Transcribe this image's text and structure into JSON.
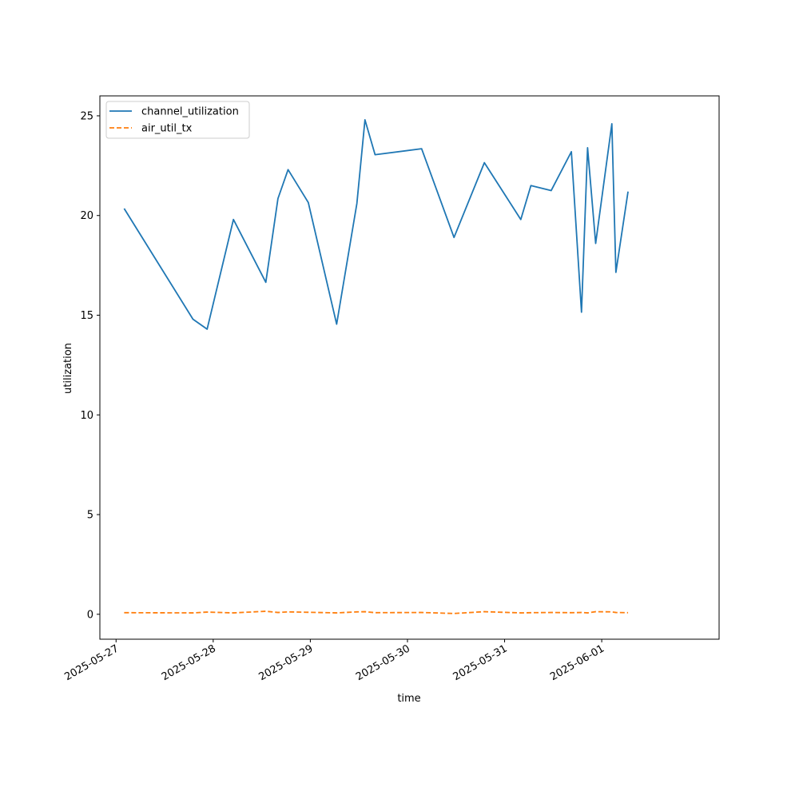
{
  "chart_data": {
    "type": "line",
    "xlabel": "time",
    "ylabel": "utilization",
    "x_axis_type": "date",
    "xlim": [
      "2025-05-26T20:00",
      "2025-06-02T05:00"
    ],
    "ylim": [
      -1.25,
      26
    ],
    "x_ticks": [
      "2025-05-27",
      "2025-05-28",
      "2025-05-29",
      "2025-05-30",
      "2025-05-31",
      "2025-06-01"
    ],
    "y_ticks": [
      0,
      5,
      10,
      15,
      20,
      25
    ],
    "legend_position": "top-left",
    "grid": false,
    "series": [
      {
        "name": "channel_utilization",
        "color": "#1f77b4",
        "style": "solid",
        "points": [
          {
            "x": "2025-05-27T02:00",
            "y": 20.35
          },
          {
            "x": "2025-05-27T19:00",
            "y": 14.8
          },
          {
            "x": "2025-05-27T22:30",
            "y": 14.3
          },
          {
            "x": "2025-05-28T05:00",
            "y": 19.8
          },
          {
            "x": "2025-05-28T13:00",
            "y": 16.65
          },
          {
            "x": "2025-05-28T16:00",
            "y": 20.85
          },
          {
            "x": "2025-05-28T18:30",
            "y": 22.3
          },
          {
            "x": "2025-05-28T23:30",
            "y": 20.65
          },
          {
            "x": "2025-05-29T06:30",
            "y": 14.55
          },
          {
            "x": "2025-05-29T11:30",
            "y": 20.6
          },
          {
            "x": "2025-05-29T13:30",
            "y": 24.8
          },
          {
            "x": "2025-05-29T16:00",
            "y": 23.05
          },
          {
            "x": "2025-05-30T03:30",
            "y": 23.35
          },
          {
            "x": "2025-05-30T11:30",
            "y": 18.9
          },
          {
            "x": "2025-05-30T19:00",
            "y": 22.65
          },
          {
            "x": "2025-05-31T04:00",
            "y": 19.8
          },
          {
            "x": "2025-05-31T06:30",
            "y": 21.5
          },
          {
            "x": "2025-05-31T11:30",
            "y": 21.25
          },
          {
            "x": "2025-05-31T16:30",
            "y": 23.2
          },
          {
            "x": "2025-05-31T19:00",
            "y": 15.15
          },
          {
            "x": "2025-05-31T20:30",
            "y": 23.4
          },
          {
            "x": "2025-05-31T22:30",
            "y": 18.6
          },
          {
            "x": "2025-06-01T02:30",
            "y": 24.6
          },
          {
            "x": "2025-06-01T03:30",
            "y": 17.15
          },
          {
            "x": "2025-06-01T06:30",
            "y": 21.2
          }
        ]
      },
      {
        "name": "air_util_tx",
        "color": "#ff7f0e",
        "style": "dashed",
        "points": [
          {
            "x": "2025-05-27T02:00",
            "y": 0.08
          },
          {
            "x": "2025-05-27T19:00",
            "y": 0.07
          },
          {
            "x": "2025-05-27T22:30",
            "y": 0.11
          },
          {
            "x": "2025-05-28T05:00",
            "y": 0.07
          },
          {
            "x": "2025-05-28T13:00",
            "y": 0.15
          },
          {
            "x": "2025-05-28T16:00",
            "y": 0.09
          },
          {
            "x": "2025-05-28T18:30",
            "y": 0.12
          },
          {
            "x": "2025-05-28T23:30",
            "y": 0.1
          },
          {
            "x": "2025-05-29T06:30",
            "y": 0.07
          },
          {
            "x": "2025-05-29T11:30",
            "y": 0.12
          },
          {
            "x": "2025-05-29T13:30",
            "y": 0.13
          },
          {
            "x": "2025-05-29T16:00",
            "y": 0.08
          },
          {
            "x": "2025-05-30T03:30",
            "y": 0.09
          },
          {
            "x": "2025-05-30T11:30",
            "y": 0.04
          },
          {
            "x": "2025-05-30T19:00",
            "y": 0.13
          },
          {
            "x": "2025-05-31T04:00",
            "y": 0.07
          },
          {
            "x": "2025-05-31T06:30",
            "y": 0.08
          },
          {
            "x": "2025-05-31T11:30",
            "y": 0.09
          },
          {
            "x": "2025-05-31T16:30",
            "y": 0.08
          },
          {
            "x": "2025-05-31T19:00",
            "y": 0.09
          },
          {
            "x": "2025-05-31T20:30",
            "y": 0.07
          },
          {
            "x": "2025-05-31T22:30",
            "y": 0.13
          },
          {
            "x": "2025-06-01T02:30",
            "y": 0.12
          },
          {
            "x": "2025-06-01T03:30",
            "y": 0.09
          },
          {
            "x": "2025-06-01T06:30",
            "y": 0.08
          }
        ]
      }
    ]
  }
}
